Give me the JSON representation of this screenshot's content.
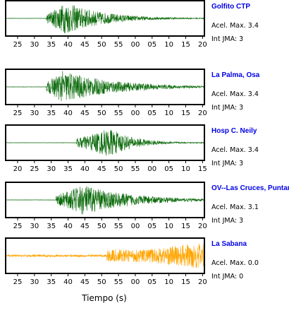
{
  "chart_data": {
    "type": "line",
    "xlabel": "Tiempo (s)",
    "panels": [
      {
        "station": "Golfito CTP",
        "accel_label": "Acel. Max.",
        "accel_value": "3.4",
        "jma_label": "Int JMA:",
        "jma_value": "3",
        "color": "#0a6a0a",
        "tick_labels": [
          "25",
          "30",
          "35",
          "40",
          "45",
          "50",
          "55",
          "00",
          "05",
          "10",
          "15",
          "20"
        ],
        "x_start_sec": 22,
        "x_span_sec": 59,
        "onset_sec": 34,
        "peak_sec": 40,
        "peak_amplitude": 0.95,
        "decay": 0.09
      },
      {
        "station": "La Palma, Osa",
        "accel_label": "Acel. Max.",
        "accel_value": "3.4",
        "jma_label": "Int JMA:",
        "jma_value": "3",
        "color": "#0a6a0a",
        "tick_labels": [
          "25",
          "30",
          "35",
          "40",
          "45",
          "50",
          "55",
          "00",
          "05",
          "10",
          "15",
          "20"
        ],
        "x_start_sec": 22,
        "x_span_sec": 59,
        "onset_sec": 34,
        "peak_sec": 39,
        "peak_amplitude": 0.95,
        "decay": 0.065
      },
      {
        "station": "Hosp C. Neily",
        "accel_label": "Acel. Max.",
        "accel_value": "3.4",
        "jma_label": "Int JMA:",
        "jma_value": "3",
        "color": "#0a6a0a",
        "tick_labels": [
          "20",
          "25",
          "30",
          "35",
          "40",
          "45",
          "50",
          "55",
          "00",
          "05",
          "10",
          "15"
        ],
        "x_start_sec": 17,
        "x_span_sec": 59,
        "onset_sec": 38,
        "peak_sec": 48,
        "peak_amplitude": 0.85,
        "decay": 0.14
      },
      {
        "station": "OV--Las Cruces, Puntar",
        "accel_label": "Acel. Max.",
        "accel_value": "3.1",
        "jma_label": "Int JMA:",
        "jma_value": "3",
        "color": "#0a6a0a",
        "tick_labels": [
          "25",
          "30",
          "35",
          "40",
          "45",
          "50",
          "55",
          "00",
          "05",
          "10",
          "15",
          "20"
        ],
        "x_start_sec": 22,
        "x_span_sec": 59,
        "onset_sec": 37,
        "peak_sec": 45,
        "peak_amplitude": 0.9,
        "decay": 0.07
      },
      {
        "station": "La Sabana",
        "accel_label": "Acel. Max.",
        "accel_value": "0.0",
        "jma_label": "Int JMA:",
        "jma_value": "0",
        "color": "#ffa500",
        "tick_labels": [
          "25",
          "30",
          "35",
          "40",
          "45",
          "50",
          "55",
          "00",
          "05",
          "10",
          "15",
          "20"
        ],
        "x_start_sec": 22,
        "x_span_sec": 59,
        "noise_level_start": 0.07,
        "noise_level_end": 0.75,
        "noise_rise_sec": 59
      }
    ]
  }
}
